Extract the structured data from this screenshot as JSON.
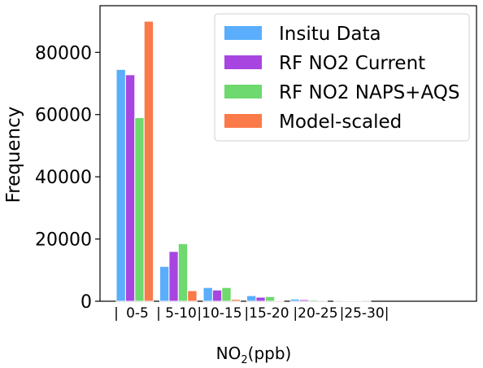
{
  "chart_data": {
    "type": "bar",
    "category_labels": [
      "|",
      "0-5",
      "| 5-10",
      "|10-15",
      "|15-20",
      "|20-25",
      "|25-30|"
    ],
    "categories": [
      "0-5",
      "5-10",
      "10-15",
      "15-20",
      "20-25",
      "25-30"
    ],
    "series": [
      {
        "name": "Insitu Data",
        "color": "#5aaefc",
        "values": [
          74500,
          11200,
          4400,
          1800,
          700,
          300
        ]
      },
      {
        "name": "RF NO2 Current",
        "color": "#a845e0",
        "values": [
          72800,
          16000,
          3600,
          1300,
          500,
          200
        ]
      },
      {
        "name": "RF NO2 NAPS+AQS",
        "color": "#6ed96e",
        "values": [
          59000,
          18500,
          4400,
          1500,
          400,
          150
        ]
      },
      {
        "name": "Model-scaled",
        "color": "#fb7a4a",
        "values": [
          90000,
          3400,
          600,
          150,
          50,
          20
        ]
      }
    ],
    "ylabel": "Frequency",
    "xlabel_main": "NO",
    "xlabel_sub": "2",
    "xlabel_unit": "(ppb)",
    "ylim": [
      0,
      95000
    ],
    "yticks": [
      0,
      20000,
      40000,
      60000,
      80000
    ],
    "grid": false,
    "legend_placement": "top-right"
  }
}
